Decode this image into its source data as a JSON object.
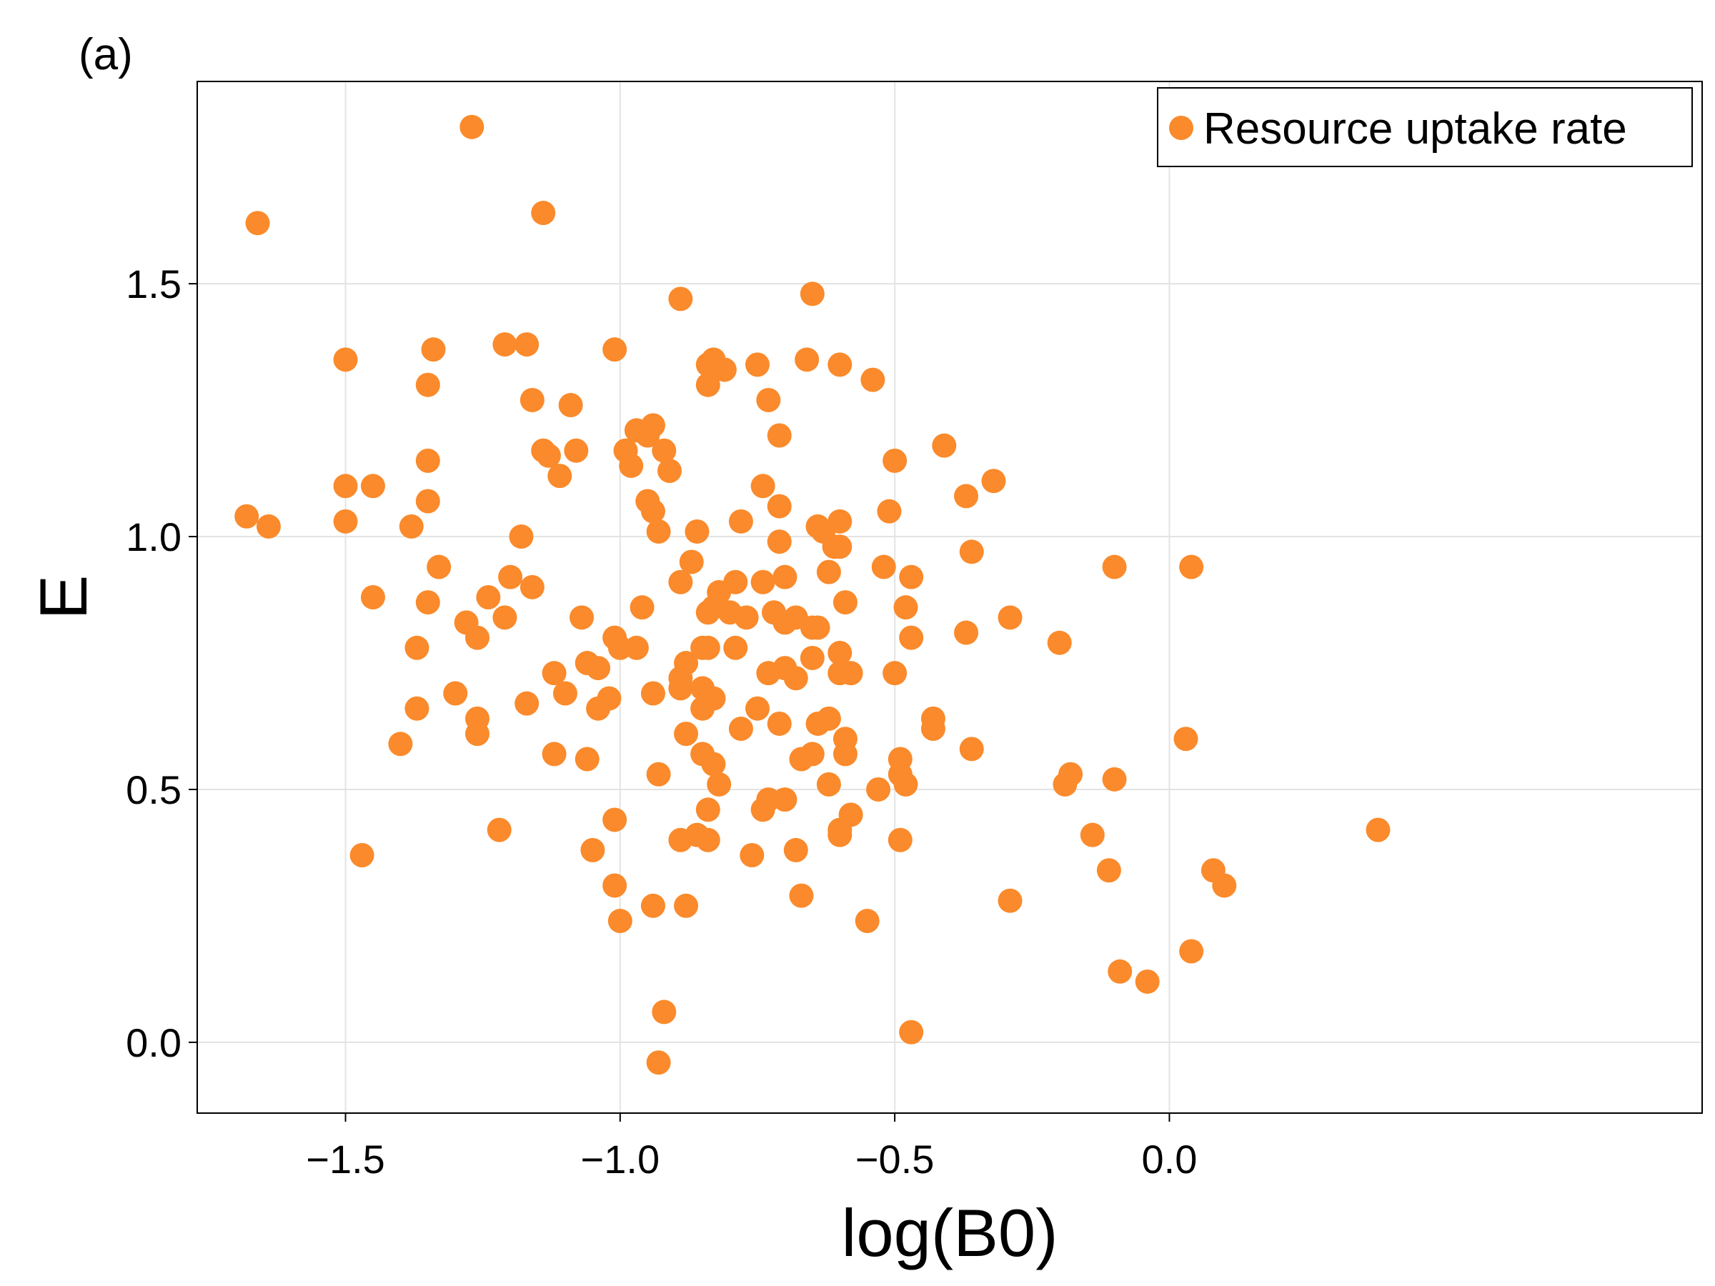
{
  "panel_label": "(a)",
  "chart_data": {
    "type": "scatter",
    "title": "",
    "xlabel": "log(B0)",
    "ylabel": "E",
    "xlim": [
      -1.77,
      0.97
    ],
    "ylim": [
      -0.14,
      1.9
    ],
    "xticks": [
      -1.5,
      -1.0,
      -0.5,
      0.0
    ],
    "xtick_labels": [
      "−1.5",
      "−1.0",
      "−0.5",
      "0.0"
    ],
    "yticks": [
      0.0,
      0.5,
      1.0,
      1.5
    ],
    "ytick_labels": [
      "0.0",
      "0.5",
      "1.0",
      "1.5"
    ],
    "grid": true,
    "legend_position": "top-right",
    "series": [
      {
        "name": "Resource uptake rate",
        "color": "#FA8A2B",
        "points": [
          [
            -1.66,
            1.62
          ],
          [
            -1.27,
            1.81
          ],
          [
            -1.14,
            1.64
          ],
          [
            -1.68,
            1.04
          ],
          [
            -1.64,
            1.02
          ],
          [
            -1.5,
            1.35
          ],
          [
            -1.34,
            1.37
          ],
          [
            -1.35,
            1.3
          ],
          [
            -1.5,
            1.1
          ],
          [
            -1.5,
            1.03
          ],
          [
            -1.45,
            1.1
          ],
          [
            -1.35,
            1.15
          ],
          [
            -1.35,
            1.07
          ],
          [
            -1.38,
            1.02
          ],
          [
            -1.33,
            0.94
          ],
          [
            -1.45,
            0.88
          ],
          [
            -1.35,
            0.87
          ],
          [
            -1.28,
            0.83
          ],
          [
            -1.26,
            0.8
          ],
          [
            -1.37,
            0.78
          ],
          [
            -1.37,
            0.66
          ],
          [
            -1.4,
            0.59
          ],
          [
            -1.3,
            0.69
          ],
          [
            -1.26,
            0.64
          ],
          [
            -1.26,
            0.61
          ],
          [
            -1.47,
            0.37
          ],
          [
            -1.21,
            1.38
          ],
          [
            -1.17,
            1.38
          ],
          [
            -1.16,
            1.27
          ],
          [
            -1.09,
            1.26
          ],
          [
            -1.14,
            1.17
          ],
          [
            -1.13,
            1.16
          ],
          [
            -1.08,
            1.17
          ],
          [
            -1.11,
            1.12
          ],
          [
            -1.18,
            1.0
          ],
          [
            -1.2,
            0.92
          ],
          [
            -1.24,
            0.88
          ],
          [
            -1.21,
            0.84
          ],
          [
            -1.16,
            0.9
          ],
          [
            -1.12,
            0.73
          ],
          [
            -1.1,
            0.69
          ],
          [
            -1.17,
            0.67
          ],
          [
            -1.12,
            0.57
          ],
          [
            -1.22,
            0.42
          ],
          [
            -1.01,
            1.37
          ],
          [
            -0.89,
            1.47
          ],
          [
            -0.65,
            1.48
          ],
          [
            -0.97,
            1.21
          ],
          [
            -0.94,
            1.22
          ],
          [
            -0.95,
            1.2
          ],
          [
            -0.92,
            1.17
          ],
          [
            -0.99,
            1.17
          ],
          [
            -0.98,
            1.14
          ],
          [
            -0.91,
            1.13
          ],
          [
            -0.95,
            1.07
          ],
          [
            -0.94,
            1.05
          ],
          [
            -0.93,
            1.01
          ],
          [
            -1.07,
            0.84
          ],
          [
            -0.96,
            0.86
          ],
          [
            -1.01,
            0.8
          ],
          [
            -1.0,
            0.78
          ],
          [
            -0.97,
            0.78
          ],
          [
            -1.06,
            0.75
          ],
          [
            -1.04,
            0.74
          ],
          [
            -1.02,
            0.68
          ],
          [
            -1.04,
            0.66
          ],
          [
            -0.94,
            0.69
          ],
          [
            -1.06,
            0.56
          ],
          [
            -0.93,
            0.53
          ],
          [
            -1.01,
            0.44
          ],
          [
            -1.05,
            0.38
          ],
          [
            -1.01,
            0.31
          ],
          [
            -1.0,
            0.24
          ],
          [
            -0.94,
            0.27
          ],
          [
            -0.92,
            0.06
          ],
          [
            -0.93,
            -0.04
          ],
          [
            -0.84,
            1.34
          ],
          [
            -0.83,
            1.35
          ],
          [
            -0.81,
            1.33
          ],
          [
            -0.84,
            1.3
          ],
          [
            -0.75,
            1.34
          ],
          [
            -0.66,
            1.35
          ],
          [
            -0.6,
            1.34
          ],
          [
            -0.54,
            1.31
          ],
          [
            -0.73,
            1.27
          ],
          [
            -0.71,
            1.2
          ],
          [
            -0.74,
            1.1
          ],
          [
            -0.71,
            1.06
          ],
          [
            -0.78,
            1.03
          ],
          [
            -0.86,
            1.01
          ],
          [
            -0.71,
            0.99
          ],
          [
            -0.64,
            1.02
          ],
          [
            -0.63,
            1.01
          ],
          [
            -0.6,
            1.03
          ],
          [
            -0.61,
            0.98
          ],
          [
            -0.6,
            0.98
          ],
          [
            -0.87,
            0.95
          ],
          [
            -0.89,
            0.91
          ],
          [
            -0.79,
            0.91
          ],
          [
            -0.74,
            0.91
          ],
          [
            -0.7,
            0.92
          ],
          [
            -0.62,
            0.93
          ],
          [
            -0.82,
            0.89
          ],
          [
            -0.83,
            0.86
          ],
          [
            -0.84,
            0.85
          ],
          [
            -0.8,
            0.85
          ],
          [
            -0.77,
            0.84
          ],
          [
            -0.72,
            0.85
          ],
          [
            -0.7,
            0.83
          ],
          [
            -0.68,
            0.84
          ],
          [
            -0.65,
            0.82
          ],
          [
            -0.64,
            0.82
          ],
          [
            -0.59,
            0.87
          ],
          [
            -0.85,
            0.78
          ],
          [
            -0.84,
            0.78
          ],
          [
            -0.79,
            0.78
          ],
          [
            -0.88,
            0.75
          ],
          [
            -0.89,
            0.72
          ],
          [
            -0.89,
            0.7
          ],
          [
            -0.85,
            0.7
          ],
          [
            -0.85,
            0.66
          ],
          [
            -0.83,
            0.68
          ],
          [
            -0.73,
            0.73
          ],
          [
            -0.7,
            0.74
          ],
          [
            -0.68,
            0.72
          ],
          [
            -0.65,
            0.76
          ],
          [
            -0.6,
            0.77
          ],
          [
            -0.6,
            0.73
          ],
          [
            -0.58,
            0.73
          ],
          [
            -0.75,
            0.66
          ],
          [
            -0.71,
            0.63
          ],
          [
            -0.64,
            0.63
          ],
          [
            -0.62,
            0.64
          ],
          [
            -0.88,
            0.61
          ],
          [
            -0.78,
            0.62
          ],
          [
            -0.59,
            0.6
          ],
          [
            -0.85,
            0.57
          ],
          [
            -0.83,
            0.55
          ],
          [
            -0.67,
            0.56
          ],
          [
            -0.65,
            0.57
          ],
          [
            -0.59,
            0.57
          ],
          [
            -0.82,
            0.51
          ],
          [
            -0.62,
            0.51
          ],
          [
            -0.74,
            0.46
          ],
          [
            -0.73,
            0.48
          ],
          [
            -0.7,
            0.48
          ],
          [
            -0.84,
            0.46
          ],
          [
            -0.58,
            0.45
          ],
          [
            -0.6,
            0.42
          ],
          [
            -0.6,
            0.41
          ],
          [
            -0.89,
            0.4
          ],
          [
            -0.86,
            0.41
          ],
          [
            -0.84,
            0.4
          ],
          [
            -0.76,
            0.37
          ],
          [
            -0.68,
            0.38
          ],
          [
            -0.88,
            0.27
          ],
          [
            -0.67,
            0.29
          ],
          [
            -0.55,
            0.24
          ],
          [
            -0.5,
            1.15
          ],
          [
            -0.41,
            1.18
          ],
          [
            -0.32,
            1.11
          ],
          [
            -0.37,
            1.08
          ],
          [
            -0.51,
            1.05
          ],
          [
            -0.36,
            0.97
          ],
          [
            -0.52,
            0.94
          ],
          [
            -0.47,
            0.92
          ],
          [
            -0.48,
            0.86
          ],
          [
            -0.47,
            0.8
          ],
          [
            -0.5,
            0.73
          ],
          [
            -0.29,
            0.84
          ],
          [
            -0.37,
            0.81
          ],
          [
            -0.43,
            0.64
          ],
          [
            -0.43,
            0.62
          ],
          [
            -0.36,
            0.58
          ],
          [
            -0.49,
            0.56
          ],
          [
            -0.49,
            0.53
          ],
          [
            -0.48,
            0.51
          ],
          [
            -0.53,
            0.5
          ],
          [
            -0.49,
            0.4
          ],
          [
            -0.29,
            0.28
          ],
          [
            -0.47,
            0.02
          ],
          [
            -0.2,
            0.79
          ],
          [
            -0.1,
            0.94
          ],
          [
            0.04,
            0.94
          ],
          [
            0.03,
            0.6
          ],
          [
            -0.18,
            0.53
          ],
          [
            -0.19,
            0.51
          ],
          [
            -0.1,
            0.52
          ],
          [
            -0.14,
            0.41
          ],
          [
            -0.11,
            0.34
          ],
          [
            -0.09,
            0.14
          ],
          [
            -0.04,
            0.12
          ],
          [
            0.04,
            0.18
          ],
          [
            0.08,
            0.34
          ],
          [
            0.1,
            0.31
          ],
          [
            0.38,
            0.42
          ]
        ]
      }
    ]
  }
}
